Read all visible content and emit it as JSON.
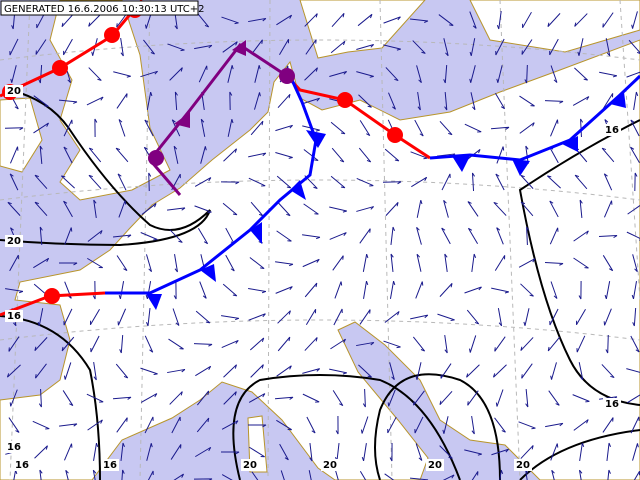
{
  "header": {
    "text": "GENERATED 16.6.2006 10:30:13 UTC+2"
  },
  "isotherm_labels": [
    20,
    16,
    20,
    16,
    16,
    16,
    16,
    16,
    20,
    20,
    20,
    20
  ]
}
